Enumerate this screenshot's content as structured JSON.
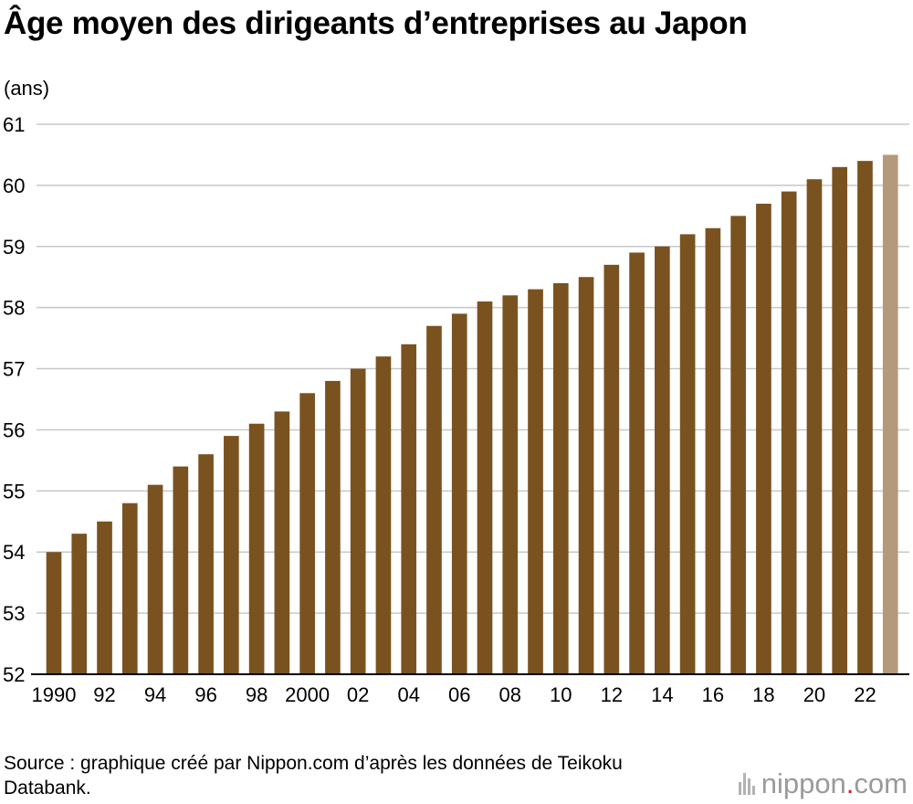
{
  "title": "Âge moyen des dirigeants d’entreprises au Japon",
  "unit_label": "(ans)",
  "source": "Source : graphique créé par Nippon.com d’après les données de Teikoku Databank.",
  "logo": {
    "name": "nippon",
    "dot": ".",
    "suffix": "com",
    "icon": "nippon-logo-icon"
  },
  "colors": {
    "bar": "#7a5220",
    "bar_highlight": "#b49a7a",
    "grid": "#c8c8c8",
    "logo_dot": "#d4202a"
  },
  "chart_data": {
    "type": "bar",
    "title": "Âge moyen des dirigeants d’entreprises au Japon",
    "ylabel": "(ans)",
    "xlabel": "",
    "categories": [
      "1990",
      "1991",
      "1992",
      "1993",
      "1994",
      "1995",
      "1996",
      "1997",
      "1998",
      "1999",
      "2000",
      "2001",
      "2002",
      "2003",
      "2004",
      "2005",
      "2006",
      "2007",
      "2008",
      "2009",
      "2010",
      "2011",
      "2012",
      "2013",
      "2014",
      "2015",
      "2016",
      "2017",
      "2018",
      "2019",
      "2020",
      "2021",
      "2022",
      "2023"
    ],
    "values": [
      54.0,
      54.3,
      54.5,
      54.8,
      55.1,
      55.4,
      55.6,
      55.9,
      56.1,
      56.3,
      56.6,
      56.8,
      57.0,
      57.2,
      57.4,
      57.7,
      57.9,
      58.1,
      58.2,
      58.3,
      58.4,
      58.5,
      58.7,
      58.9,
      59.0,
      59.2,
      59.3,
      59.5,
      59.7,
      59.9,
      60.1,
      60.3,
      60.4,
      60.5
    ],
    "highlight_index": 33,
    "x_tick_labels": [
      "1990",
      "",
      "92",
      "",
      "94",
      "",
      "96",
      "",
      "98",
      "",
      "2000",
      "",
      "02",
      "",
      "04",
      "",
      "06",
      "",
      "08",
      "",
      "10",
      "",
      "12",
      "",
      "14",
      "",
      "16",
      "",
      "18",
      "",
      "20",
      "",
      "22",
      ""
    ],
    "ylim": [
      52,
      61
    ],
    "y_ticks": [
      52,
      53,
      54,
      55,
      56,
      57,
      58,
      59,
      60,
      61
    ],
    "grid": true,
    "legend": "none"
  }
}
